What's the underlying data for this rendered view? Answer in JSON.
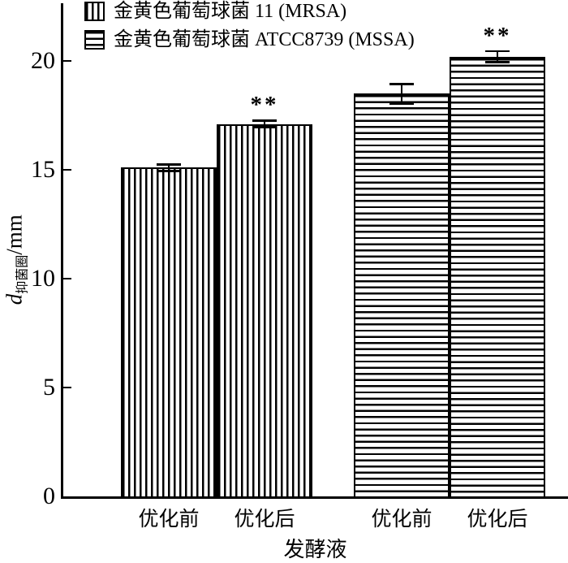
{
  "chart_data": {
    "type": "bar",
    "title": "",
    "xlabel": "发酵液",
    "ylabel": "d抑菌圈/mm",
    "ylabel_parts": {
      "symbol": "d",
      "subscript": "抑菌圈",
      "unit": "/mm"
    },
    "categories": [
      "优化前",
      "优化后",
      "优化前",
      "优化后"
    ],
    "yticks": [
      0,
      5,
      10,
      15,
      20
    ],
    "ylim": [
      0,
      22.6
    ],
    "grid": false,
    "legend_position": "top-left-inside",
    "series": [
      {
        "name": "金黄色葡萄球菌 11 (MRSA)",
        "pattern": "vertical-stripes",
        "values": [
          15.1,
          17.1
        ],
        "errors": [
          0.2,
          0.2
        ],
        "significance": [
          "",
          "**"
        ]
      },
      {
        "name": "金黄色葡萄球菌 ATCC8739 (MSSA)",
        "pattern": "horizontal-stripes",
        "values": [
          18.5,
          20.2
        ],
        "errors": [
          0.5,
          0.3
        ],
        "significance": [
          "",
          "**"
        ]
      }
    ],
    "colors": {
      "foreground": "#000000",
      "background": "#ffffff"
    }
  }
}
